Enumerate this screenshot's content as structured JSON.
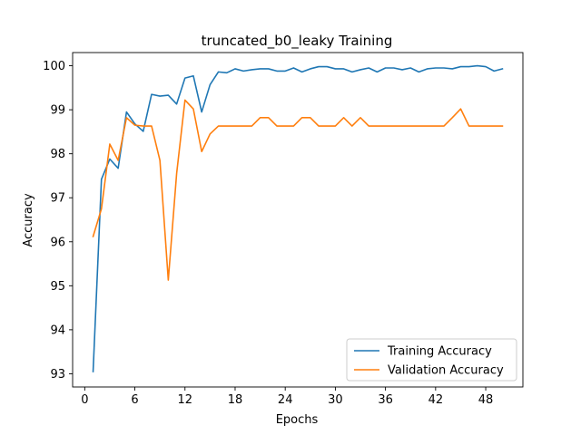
{
  "chart_data": {
    "type": "line",
    "title": "truncated_b0_leaky Training",
    "xlabel": "Epochs",
    "ylabel": "Accuracy",
    "xlim": [
      -1.45,
      52.45
    ],
    "ylim": [
      92.7,
      100.3
    ],
    "xticks": [
      0,
      6,
      12,
      18,
      24,
      30,
      36,
      42,
      48
    ],
    "yticks": [
      93,
      94,
      95,
      96,
      97,
      98,
      99,
      100
    ],
    "grid": false,
    "legend_position": "lower-right",
    "series": [
      {
        "name": "Training Accuracy",
        "color": "#1f77b4",
        "x": [
          1,
          2,
          3,
          4,
          5,
          6,
          7,
          8,
          9,
          10,
          11,
          12,
          13,
          14,
          15,
          16,
          17,
          18,
          19,
          20,
          21,
          22,
          23,
          24,
          25,
          26,
          27,
          28,
          29,
          30,
          31,
          32,
          33,
          34,
          35,
          36,
          37,
          38,
          39,
          40,
          41,
          42,
          43,
          44,
          45,
          46,
          47,
          48,
          49,
          50
        ],
        "y": [
          93.05,
          97.42,
          97.88,
          97.67,
          98.95,
          98.68,
          98.51,
          99.35,
          99.31,
          99.33,
          99.13,
          99.72,
          99.77,
          98.95,
          99.57,
          99.86,
          99.84,
          99.93,
          99.88,
          99.91,
          99.93,
          99.93,
          99.88,
          99.88,
          99.95,
          99.86,
          99.93,
          99.98,
          99.98,
          99.93,
          99.93,
          99.86,
          99.91,
          99.95,
          99.86,
          99.95,
          99.95,
          99.91,
          99.95,
          99.86,
          99.93,
          99.95,
          99.95,
          99.93,
          99.98,
          99.98,
          100.0,
          99.98,
          99.88,
          99.93
        ]
      },
      {
        "name": "Validation Accuracy",
        "color": "#ff7f0e",
        "x": [
          1,
          2,
          3,
          4,
          5,
          6,
          7,
          8,
          9,
          10,
          11,
          12,
          13,
          14,
          15,
          16,
          17,
          18,
          19,
          20,
          21,
          22,
          23,
          24,
          25,
          26,
          27,
          28,
          29,
          30,
          31,
          32,
          33,
          34,
          35,
          36,
          37,
          38,
          39,
          40,
          41,
          42,
          43,
          44,
          45,
          46,
          47,
          48,
          49,
          50
        ],
        "y": [
          96.12,
          96.75,
          98.22,
          97.85,
          98.82,
          98.65,
          98.63,
          98.63,
          97.85,
          95.13,
          97.55,
          99.22,
          99.02,
          98.05,
          98.45,
          98.63,
          98.63,
          98.63,
          98.63,
          98.63,
          98.82,
          98.82,
          98.63,
          98.63,
          98.63,
          98.82,
          98.82,
          98.63,
          98.63,
          98.63,
          98.82,
          98.63,
          98.82,
          98.63,
          98.63,
          98.63,
          98.63,
          98.63,
          98.63,
          98.63,
          98.63,
          98.63,
          98.63,
          98.82,
          99.02,
          98.63,
          98.63,
          98.63,
          98.63,
          98.63
        ]
      }
    ]
  }
}
